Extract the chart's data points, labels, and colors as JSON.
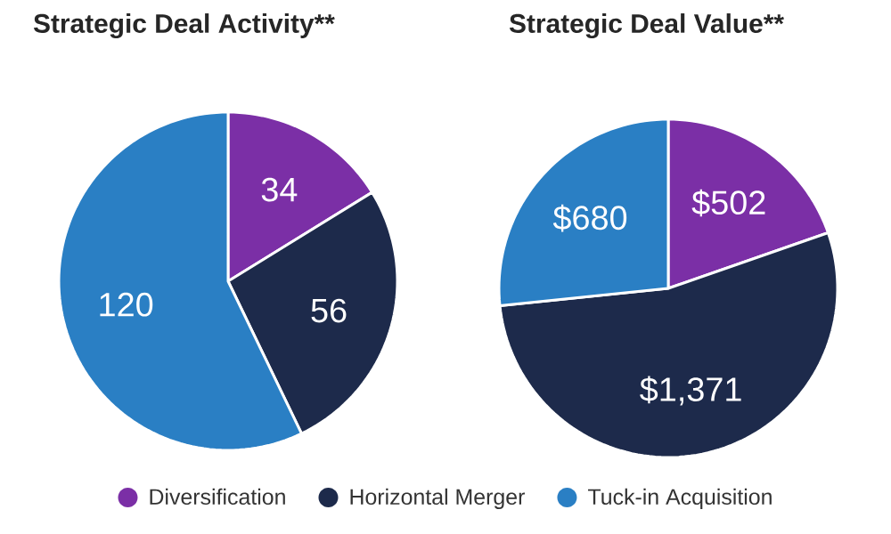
{
  "chart_data": [
    {
      "type": "pie",
      "title": "Strategic Deal Activity**",
      "categories": [
        "Diversification",
        "Horizontal Merger",
        "Tuck-in Acquisition"
      ],
      "values": [
        34,
        56,
        120
      ],
      "colors": [
        "#7b2fa6",
        "#1d2a4b",
        "#2a7fc4"
      ],
      "data_labels": true,
      "legend": "bottom"
    },
    {
      "type": "pie",
      "title": "Strategic Deal Value**",
      "categories": [
        null,
        null,
        null
      ],
      "values": [
        502,
        1371,
        680
      ],
      "colors": [
        "#7b2fa6",
        "#1d2a4b",
        "#2a7fc4"
      ],
      "value_labels": [
        "$502",
        "$1,371",
        "$680"
      ]
    }
  ]
}
